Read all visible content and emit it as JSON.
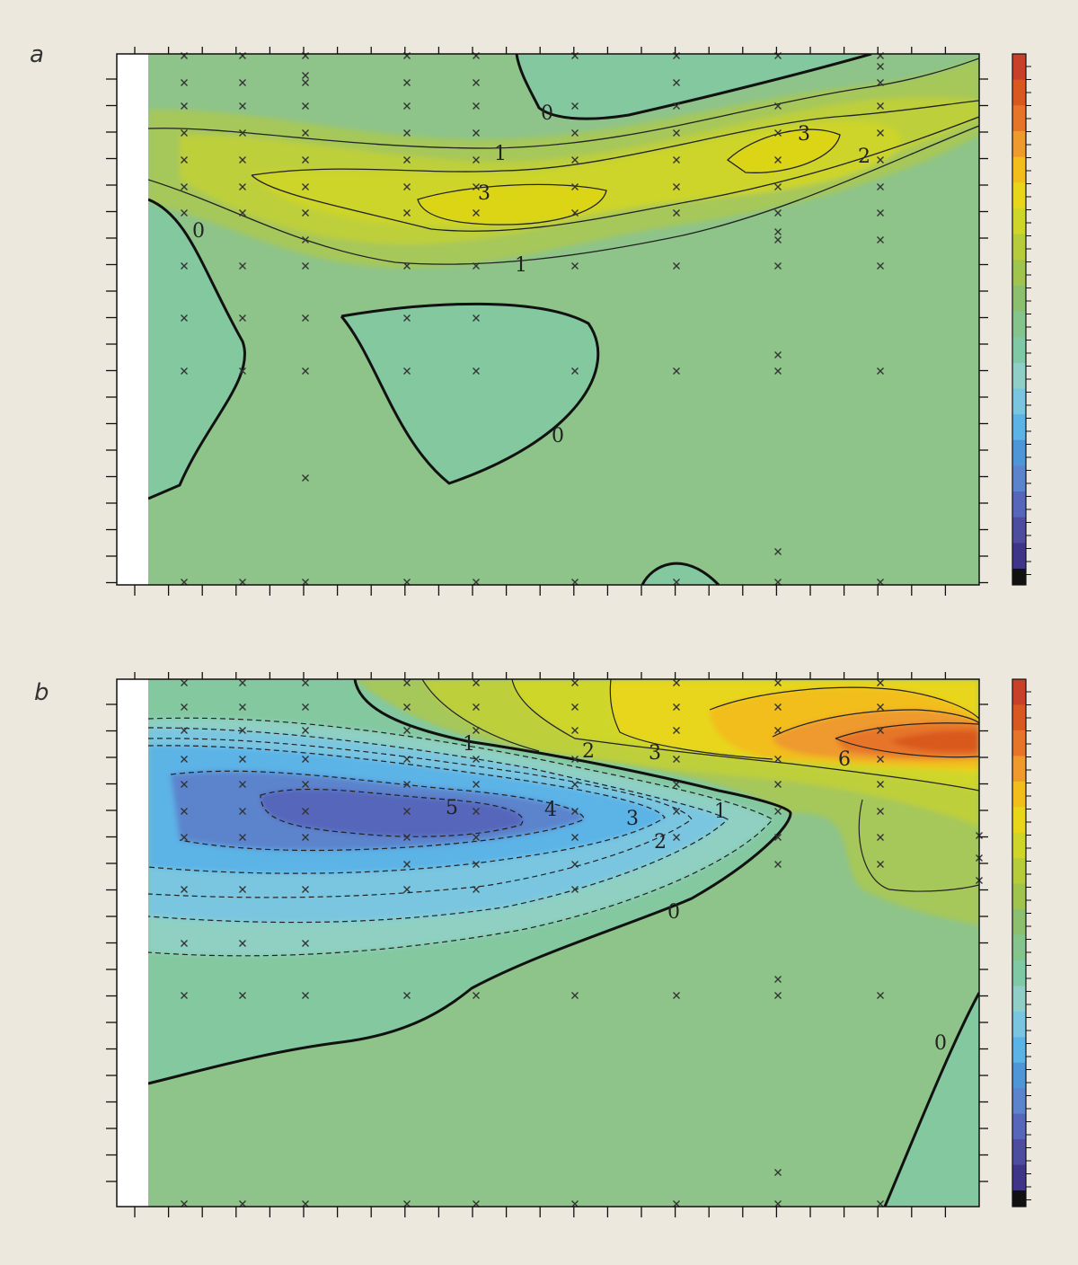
{
  "panels": [
    {
      "label": "a"
    },
    {
      "label": "b"
    }
  ],
  "colorbar_colors": [
    "#c8402a",
    "#d9581f",
    "#e6752a",
    "#ee9a2d",
    "#f2be1c",
    "#e7d61a",
    "#cfd62a",
    "#b7cc3a",
    "#a1c44e",
    "#8cc06e",
    "#85c58d",
    "#80c9a6",
    "#8fcfc5",
    "#7ac6e0",
    "#5cb3e6",
    "#4f96d9",
    "#5b84cd",
    "#5666ba",
    "#4d4c9f",
    "#3f3588",
    "#111111"
  ],
  "chart_data": [
    {
      "type": "heatmap",
      "panel": "a",
      "contour_labels": [
        "0",
        "1",
        "3",
        "3",
        "2",
        "1",
        "0",
        "0"
      ],
      "colorbar": {
        "tick_labels": []
      }
    },
    {
      "type": "heatmap",
      "panel": "b",
      "contour_labels": [
        "1",
        "2",
        "3",
        "6",
        "5",
        "4",
        "3",
        "2",
        "1",
        "0",
        "0"
      ],
      "colorbar": {
        "tick_labels": []
      }
    }
  ]
}
